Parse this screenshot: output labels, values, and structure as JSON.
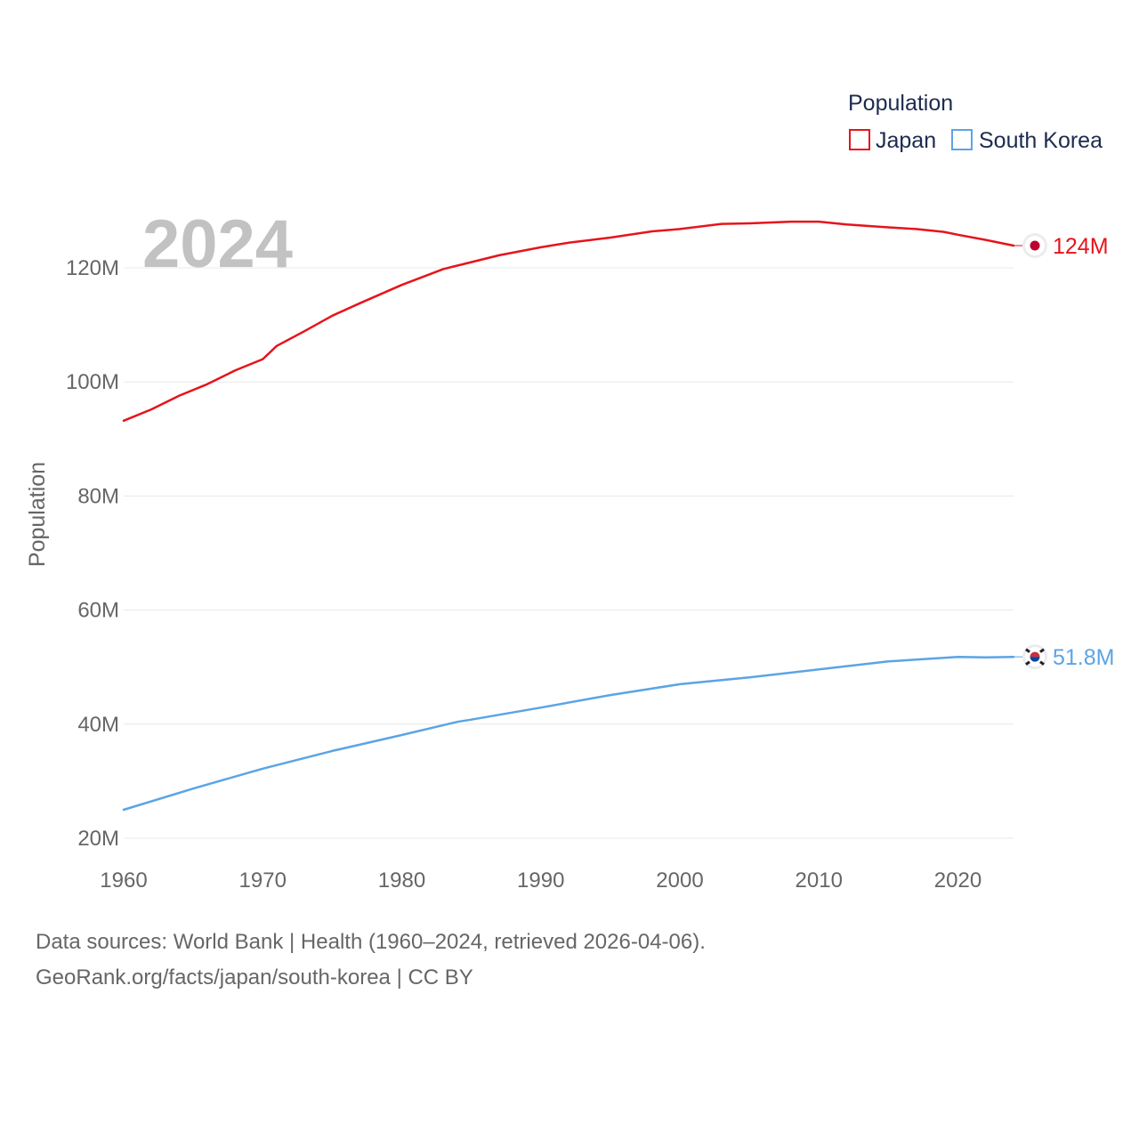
{
  "chart_data": {
    "type": "line",
    "ylabel": "Population",
    "year_label": "2024",
    "legend_title": "Population",
    "x_ticks": [
      "1960",
      "1970",
      "1980",
      "1990",
      "2000",
      "2010",
      "2020"
    ],
    "y_ticks": [
      {
        "value": 20000000,
        "label": "20M"
      },
      {
        "value": 40000000,
        "label": "40M"
      },
      {
        "value": 60000000,
        "label": "60M"
      },
      {
        "value": 80000000,
        "label": "80M"
      },
      {
        "value": 100000000,
        "label": "100M"
      },
      {
        "value": 120000000,
        "label": "120M"
      }
    ],
    "xlim": [
      1960,
      2024
    ],
    "ylim": [
      20000000,
      120000000
    ],
    "series": [
      {
        "name": "Japan",
        "color": "#e6141b",
        "end_label": "124M",
        "flag": "japan-flag",
        "x": [
          1960,
          1962,
          1964,
          1966,
          1968,
          1970,
          1971,
          1973,
          1975,
          1977,
          1980,
          1983,
          1985,
          1987,
          1990,
          1992,
          1995,
          1998,
          2000,
          2003,
          2005,
          2008,
          2010,
          2012,
          2015,
          2017,
          2019,
          2020,
          2022,
          2024
        ],
        "y": [
          93.2,
          95.2,
          97.6,
          99.6,
          102.0,
          104.0,
          106.3,
          108.9,
          111.6,
          113.8,
          117.0,
          119.8,
          121.0,
          122.2,
          123.6,
          124.4,
          125.3,
          126.4,
          126.8,
          127.7,
          127.8,
          128.1,
          128.1,
          127.6,
          127.1,
          126.8,
          126.3,
          125.8,
          124.9,
          123.9
        ]
      },
      {
        "name": "South Korea",
        "color": "#5ba4e5",
        "end_label": "51.8M",
        "flag": "south-korea-flag",
        "x": [
          1960,
          1965,
          1970,
          1975,
          1980,
          1984,
          1985,
          1990,
          1995,
          2000,
          2005,
          2010,
          2015,
          2020,
          2022,
          2024
        ],
        "y": [
          25.0,
          28.7,
          32.2,
          35.3,
          38.1,
          40.4,
          40.8,
          42.9,
          45.1,
          47.0,
          48.2,
          49.6,
          51.0,
          51.8,
          51.7,
          51.8
        ]
      }
    ],
    "y_unit": "millions"
  },
  "footer": {
    "line1": "Data sources: World Bank | Health (1960–2024, retrieved 2026-04-06).",
    "line2": "GeoRank.org/facts/japan/south-korea | CC BY"
  }
}
